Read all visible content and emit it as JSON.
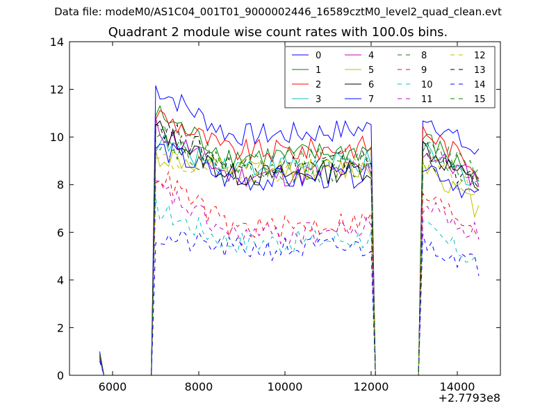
{
  "figure": {
    "suptitle": "Data file: modeM0/AS1C04_001T01_9000002446_16589cztM0_level2_quad_clean.evt",
    "title": "Quadrant 2 module wise count rates with 100.0s bins."
  },
  "chart_data": {
    "type": "line",
    "title": "Quadrant 2 module wise count rates with 100.0s bins.",
    "xlabel": "",
    "ylabel": "",
    "x_offset_label": "+2.7793e8",
    "xlim": [
      5000,
      15000
    ],
    "ylim": [
      0,
      14
    ],
    "x_ticks": [
      6000,
      8000,
      10000,
      12000,
      14000
    ],
    "y_ticks": [
      0,
      2,
      4,
      6,
      8,
      10,
      12,
      14
    ],
    "grid": false,
    "legend": {
      "placement": "top-right",
      "columns": 4
    },
    "segments": [
      {
        "x_start": 5700,
        "x_end": 6900,
        "step": 100
      },
      {
        "x_start": 7000,
        "x_end": 12100,
        "step": 100
      },
      {
        "x_start": 13200,
        "x_end": 14500,
        "step": 100
      }
    ],
    "series": [
      {
        "name": "0",
        "color": "#0000ff",
        "dash": "solid",
        "start": 1.0,
        "seg1": 12.1,
        "seg1_end": 10.1,
        "seg2": 11.0,
        "seg2_end": 9.2
      },
      {
        "name": "1",
        "color": "#008000",
        "dash": "solid",
        "start": 0.9,
        "seg1": 11.0,
        "seg1_end": 9.2,
        "seg2": 10.0,
        "seg2_end": 8.2
      },
      {
        "name": "2",
        "color": "#ff0000",
        "dash": "solid",
        "start": 0.9,
        "seg1": 11.0,
        "seg1_end": 9.4,
        "seg2": 10.3,
        "seg2_end": 8.7
      },
      {
        "name": "3",
        "color": "#00bfbf",
        "dash": "solid",
        "start": 0.8,
        "seg1": 9.8,
        "seg1_end": 8.8,
        "seg2": 9.4,
        "seg2_end": 8.1
      },
      {
        "name": "4",
        "color": "#bf00bf",
        "dash": "solid",
        "start": 0.8,
        "seg1": 10.4,
        "seg1_end": 8.4,
        "seg2": 9.4,
        "seg2_end": 8.2
      },
      {
        "name": "5",
        "color": "#bfbf00",
        "dash": "solid",
        "start": 0.8,
        "seg1": 9.2,
        "seg1_end": 8.6,
        "seg2": 9.0,
        "seg2_end": 6.9
      },
      {
        "name": "6",
        "color": "#000000",
        "dash": "solid",
        "start": 0.8,
        "seg1": 10.4,
        "seg1_end": 8.4,
        "seg2": 9.6,
        "seg2_end": 7.9
      },
      {
        "name": "7",
        "color": "#0000ff",
        "dash": "solid",
        "start": 0.7,
        "seg1": 9.6,
        "seg1_end": 8.2,
        "seg2": 9.0,
        "seg2_end": 7.4
      },
      {
        "name": "8",
        "color": "#008000",
        "dash": "dashed",
        "start": 0.9,
        "seg1": 10.2,
        "seg1_end": 9.0,
        "seg2": 9.6,
        "seg2_end": 8.0
      },
      {
        "name": "9",
        "color": "#ff0000",
        "dash": "dashed",
        "start": 0.8,
        "seg1": 8.5,
        "seg1_end": 6.2,
        "seg2": 7.6,
        "seg2_end": 6.1
      },
      {
        "name": "10",
        "color": "#00bfbf",
        "dash": "dashed",
        "start": 0.7,
        "seg1": 7.0,
        "seg1_end": 5.6,
        "seg2": 6.2,
        "seg2_end": 4.7
      },
      {
        "name": "11",
        "color": "#bf00bf",
        "dash": "dashed",
        "start": 0.7,
        "seg1": 7.9,
        "seg1_end": 5.9,
        "seg2": 7.2,
        "seg2_end": 5.9
      },
      {
        "name": "12",
        "color": "#bfbf00",
        "dash": "dashed",
        "start": 0.8,
        "seg1": 9.0,
        "seg1_end": 8.6,
        "seg2": 9.1,
        "seg2_end": 7.7
      },
      {
        "name": "13",
        "color": "#000000",
        "dash": "dashed",
        "start": 0.8,
        "seg1": 10.6,
        "seg1_end": 8.8,
        "seg2": 9.3,
        "seg2_end": 7.9
      },
      {
        "name": "14",
        "color": "#0000ff",
        "dash": "dashed",
        "start": 0.6,
        "seg1": 5.8,
        "seg1_end": 5.3,
        "seg2": 5.6,
        "seg2_end": 4.6
      },
      {
        "name": "15",
        "color": "#008000",
        "dash": "dashed",
        "start": 0.8,
        "seg1": 10.0,
        "seg1_end": 8.5,
        "seg2": 9.7,
        "seg2_end": 8.6
      }
    ]
  }
}
